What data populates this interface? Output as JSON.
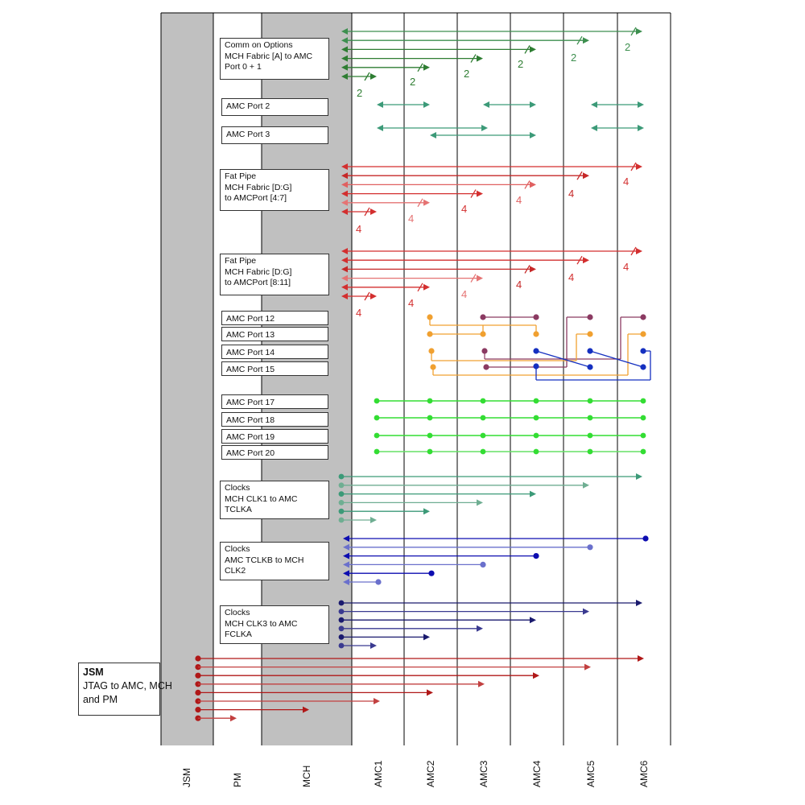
{
  "columns": [
    "JSM",
    "PM",
    "MCH",
    "AMC1",
    "AMC2",
    "AMC3",
    "AMC4",
    "AMC5",
    "AMC6"
  ],
  "groups": {
    "common_options": {
      "lines": [
        "Comm on Options",
        "MCH Fabric [A] to AMC",
        "Port 0 + 1"
      ],
      "count_label": "2",
      "color": "#2e7d32"
    },
    "amc_port_2": {
      "lines": [
        "AMC Port 2"
      ],
      "color": "#3c9a78"
    },
    "amc_port_3": {
      "lines": [
        "AMC Port 3"
      ],
      "color": "#3c9a78"
    },
    "fat_pipe_1": {
      "lines": [
        "Fat Pipe",
        "MCH Fabric [D:G]",
        "to AMCPort [4:7]"
      ],
      "count_label": "4",
      "color": "#d32f2f"
    },
    "fat_pipe_2": {
      "lines": [
        "Fat Pipe",
        "MCH Fabric [D:G]",
        "to AMCPort [8:11]"
      ],
      "count_label": "4",
      "color": "#d32f2f"
    },
    "amc_port_12": {
      "lines": [
        "AMC Port 12"
      ],
      "color": "#8b3a62"
    },
    "amc_port_13": {
      "lines": [
        "AMC Port 13"
      ],
      "color": "#f0a030"
    },
    "amc_port_14": {
      "lines": [
        "AMC Port 14"
      ],
      "color": "#1530c0"
    },
    "amc_port_15": {
      "lines": [
        "AMC Port 15"
      ]
    },
    "amc_port_17": {
      "lines": [
        "AMC Port 17"
      ],
      "color": "#33dd33"
    },
    "amc_port_18": {
      "lines": [
        "AMC Port 18"
      ]
    },
    "amc_port_19": {
      "lines": [
        "AMC Port 19"
      ]
    },
    "amc_port_20": {
      "lines": [
        "AMC Port 20"
      ]
    },
    "clk1": {
      "lines": [
        "Clocks",
        "MCH CLK1 to AMC",
        "TCLKA"
      ],
      "color": "#3c9a78"
    },
    "clk2": {
      "lines": [
        "Clocks",
        "AMC TCLKB to MCH",
        "CLK2"
      ],
      "color": "#0d0db0"
    },
    "clk3": {
      "lines": [
        "Clocks",
        "MCH CLK3 to AMC",
        "FCLKA"
      ],
      "color": "#1a1a6e"
    },
    "jsm": {
      "lines": [
        "JSM",
        "JTAG to AMC, MCH",
        "and PM"
      ],
      "color": "#b01818"
    }
  }
}
